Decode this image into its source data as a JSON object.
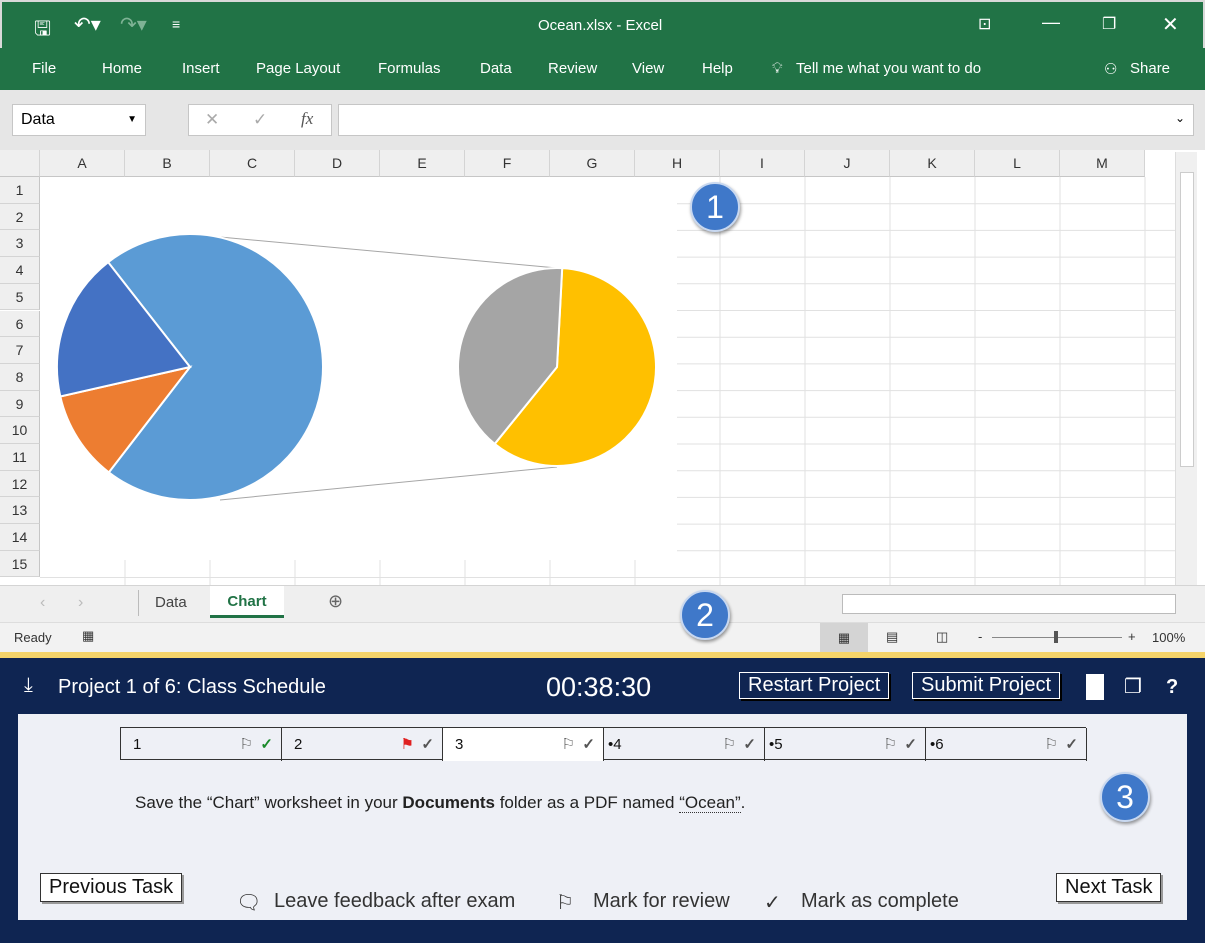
{
  "window": {
    "title": "Ocean.xlsx  -  Excel"
  },
  "ribbon": {
    "tabs": [
      "File",
      "Home",
      "Insert",
      "Page Layout",
      "Formulas",
      "Data",
      "Review",
      "View",
      "Help"
    ],
    "tell_me": "Tell me what you want to do",
    "share": "Share"
  },
  "formula_bar": {
    "name_box": "Data",
    "fx": "fx",
    "value": ""
  },
  "grid": {
    "columns": [
      "A",
      "B",
      "C",
      "D",
      "E",
      "F",
      "G",
      "H",
      "I",
      "J",
      "K",
      "L",
      "M"
    ],
    "rows": [
      "1",
      "2",
      "3",
      "4",
      "5",
      "6",
      "7",
      "8",
      "9",
      "10",
      "11",
      "12",
      "13",
      "14",
      "15"
    ]
  },
  "chart_data": {
    "type": "pie-of-pie",
    "main": {
      "values": [
        71,
        11,
        18
      ],
      "colors": [
        "#5b9bd5",
        "#ed7d31",
        "#4472c4"
      ]
    },
    "secondary": {
      "values": [
        60,
        40
      ],
      "colors": [
        "#ffc000",
        "#a5a5a5"
      ]
    }
  },
  "sheet_tabs": [
    "Data",
    "Chart"
  ],
  "active_sheet": "Chart",
  "status": {
    "ready": "Ready",
    "zoom": "100%",
    "zoom_minus": "-",
    "zoom_plus": "+"
  },
  "exam": {
    "project": "Project 1 of 6: Class Schedule",
    "timer": "00:38:30",
    "restart": "Restart Project",
    "submit": "Submit Project",
    "help": "?",
    "tasks": [
      {
        "num": "1",
        "dot": false
      },
      {
        "num": "2",
        "dot": false
      },
      {
        "num": "3",
        "dot": false
      },
      {
        "num": "4",
        "dot": true
      },
      {
        "num": "5",
        "dot": true
      },
      {
        "num": "6",
        "dot": true
      }
    ],
    "instruction_pre": "Save the “Chart” worksheet in your ",
    "instruction_bold": "Documents",
    "instruction_mid": " folder as a PDF named ",
    "instruction_name": "“Ocean”",
    "instruction_end": ".",
    "previous": "Previous Task",
    "feedback": "Leave feedback after exam",
    "review": "Mark for review",
    "complete": "Mark as complete",
    "next": "Next Task"
  },
  "badges": [
    "1",
    "2",
    "3"
  ]
}
